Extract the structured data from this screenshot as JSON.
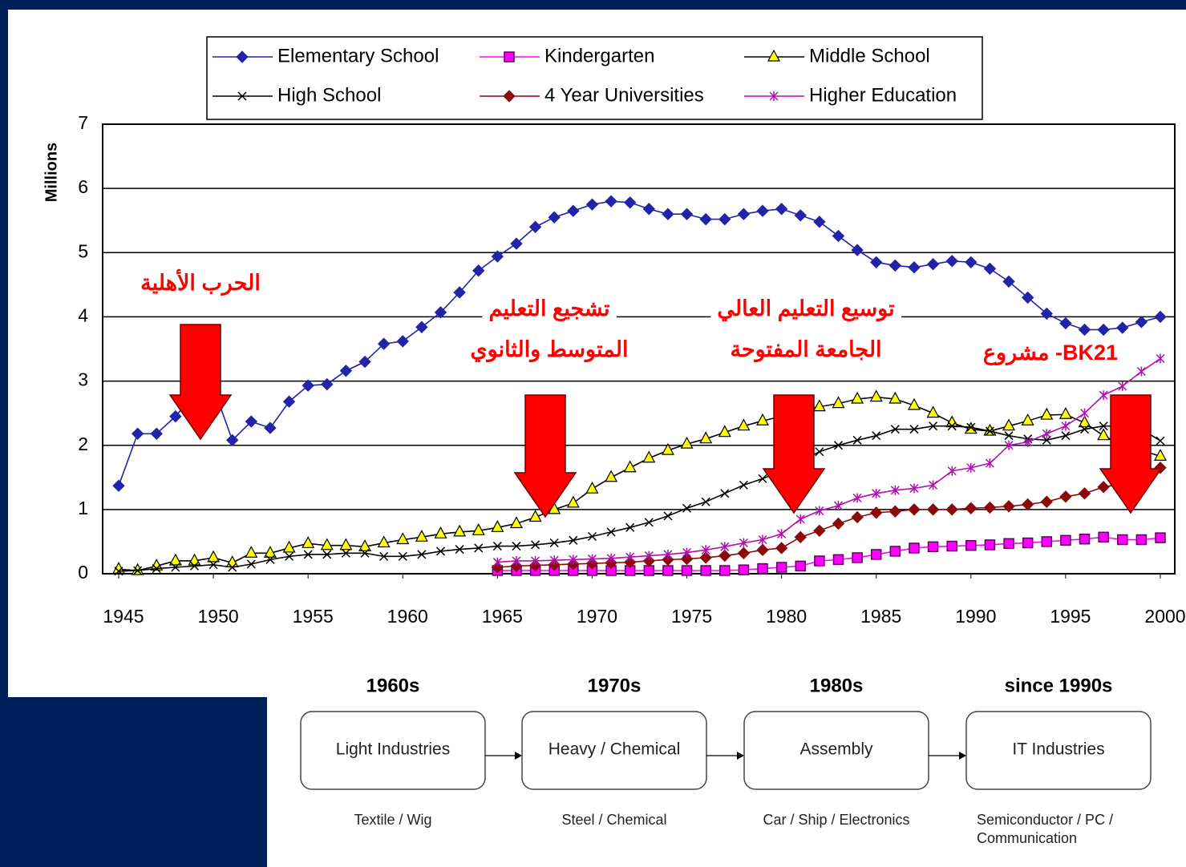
{
  "chart_data": {
    "type": "line",
    "y_label": "Millions",
    "x": [
      1945,
      1946,
      1947,
      1948,
      1949,
      1950,
      1951,
      1952,
      1953,
      1954,
      1955,
      1956,
      1957,
      1958,
      1959,
      1960,
      1961,
      1962,
      1963,
      1964,
      1965,
      1966,
      1967,
      1968,
      1969,
      1970,
      1971,
      1972,
      1973,
      1974,
      1975,
      1976,
      1977,
      1978,
      1979,
      1980,
      1981,
      1982,
      1983,
      1984,
      1985,
      1986,
      1987,
      1988,
      1989,
      1990,
      1991,
      1992,
      1993,
      1994,
      1995,
      1996,
      1997,
      1998,
      1999,
      2000
    ],
    "xlim": [
      1945,
      2000
    ],
    "xticks": [
      1945,
      1950,
      1955,
      1960,
      1965,
      1970,
      1975,
      1980,
      1985,
      1990,
      1995,
      2000
    ],
    "ylim": [
      0,
      7
    ],
    "yticks": [
      0,
      1,
      2,
      3,
      4,
      5,
      6,
      7
    ],
    "grid": true,
    "series": [
      {
        "name": "Elementary School",
        "color": "#2323a8",
        "marker": "diamond",
        "values": [
          1.37,
          2.18,
          2.18,
          2.45,
          2.8,
          2.9,
          2.08,
          2.37,
          2.27,
          2.68,
          2.93,
          2.95,
          3.16,
          3.3,
          3.58,
          3.62,
          3.84,
          4.07,
          4.38,
          4.72,
          4.94,
          5.14,
          5.4,
          5.55,
          5.65,
          5.75,
          5.8,
          5.78,
          5.68,
          5.6,
          5.6,
          5.52,
          5.52,
          5.6,
          5.65,
          5.68,
          5.58,
          5.48,
          5.26,
          5.04,
          4.85,
          4.8,
          4.77,
          4.82,
          4.87,
          4.85,
          4.75,
          4.55,
          4.3,
          4.05,
          3.9,
          3.8,
          3.8,
          3.83,
          3.92,
          4.0
        ]
      },
      {
        "name": "Kindergarten",
        "color": "#ff00ff",
        "marker": "square",
        "values": [
          null,
          null,
          null,
          null,
          null,
          null,
          null,
          null,
          null,
          null,
          null,
          null,
          null,
          null,
          null,
          null,
          null,
          null,
          null,
          null,
          0.05,
          0.05,
          0.05,
          0.05,
          0.05,
          0.05,
          0.05,
          0.05,
          0.05,
          0.05,
          0.05,
          0.05,
          0.05,
          0.06,
          0.08,
          0.1,
          0.12,
          0.2,
          0.22,
          0.25,
          0.3,
          0.35,
          0.4,
          0.42,
          0.43,
          0.44,
          0.45,
          0.47,
          0.48,
          0.5,
          0.52,
          0.54,
          0.57,
          0.53,
          0.53,
          0.56
        ]
      },
      {
        "name": "Middle School",
        "color": "#ffff00",
        "marker": "triangle",
        "values": [
          0.07,
          0.05,
          0.12,
          0.2,
          0.2,
          0.25,
          0.17,
          0.32,
          0.32,
          0.4,
          0.47,
          0.44,
          0.44,
          0.42,
          0.48,
          0.53,
          0.57,
          0.62,
          0.65,
          0.67,
          0.72,
          0.78,
          0.88,
          1.0,
          1.1,
          1.32,
          1.5,
          1.65,
          1.8,
          1.92,
          2.02,
          2.1,
          2.2,
          2.3,
          2.38,
          2.45,
          2.55,
          2.6,
          2.65,
          2.72,
          2.75,
          2.72,
          2.62,
          2.5,
          2.35,
          2.25,
          2.22,
          2.3,
          2.38,
          2.47,
          2.48,
          2.35,
          2.15,
          2.0,
          1.92,
          1.83
        ]
      },
      {
        "name": "High School",
        "color": "#000000",
        "marker": "x",
        "values": [
          0.04,
          0.05,
          0.08,
          0.1,
          0.12,
          0.14,
          0.1,
          0.15,
          0.22,
          0.27,
          0.3,
          0.3,
          0.32,
          0.32,
          0.27,
          0.27,
          0.3,
          0.35,
          0.38,
          0.4,
          0.43,
          0.43,
          0.45,
          0.48,
          0.52,
          0.58,
          0.65,
          0.72,
          0.8,
          0.9,
          1.02,
          1.12,
          1.25,
          1.38,
          1.48,
          1.6,
          1.75,
          1.9,
          2.0,
          2.08,
          2.15,
          2.25,
          2.25,
          2.3,
          2.3,
          2.28,
          2.22,
          2.15,
          2.1,
          2.08,
          2.15,
          2.25,
          2.3,
          2.3,
          2.25,
          2.07
        ]
      },
      {
        "name": "4 Year Universities",
        "color": "#8b0a0a",
        "marker": "diamond",
        "values": [
          null,
          null,
          null,
          null,
          null,
          null,
          null,
          null,
          null,
          null,
          null,
          null,
          null,
          null,
          null,
          null,
          null,
          null,
          null,
          null,
          0.1,
          0.12,
          0.13,
          0.14,
          0.15,
          0.16,
          0.17,
          0.18,
          0.2,
          0.22,
          0.23,
          0.25,
          0.28,
          0.32,
          0.37,
          0.4,
          0.57,
          0.67,
          0.78,
          0.88,
          0.95,
          0.97,
          1.0,
          1.0,
          1.0,
          1.02,
          1.03,
          1.05,
          1.08,
          1.12,
          1.2,
          1.25,
          1.35,
          1.4,
          1.52,
          1.65
        ]
      },
      {
        "name": "Higher Education",
        "color": "#b010b0",
        "marker": "star",
        "values": [
          null,
          null,
          null,
          null,
          null,
          null,
          null,
          null,
          null,
          null,
          null,
          null,
          null,
          null,
          null,
          null,
          null,
          null,
          null,
          null,
          0.18,
          0.2,
          0.2,
          0.21,
          0.22,
          0.23,
          0.24,
          0.26,
          0.28,
          0.3,
          0.33,
          0.37,
          0.42,
          0.48,
          0.53,
          0.62,
          0.85,
          0.98,
          1.06,
          1.18,
          1.25,
          1.3,
          1.33,
          1.38,
          1.6,
          1.65,
          1.72,
          2.0,
          2.05,
          2.18,
          2.3,
          2.5,
          2.78,
          2.92,
          3.15,
          3.35
        ]
      }
    ],
    "annotations": [
      {
        "lines": [
          "الحرب الأهلية"
        ]
      },
      {
        "lines": [
          "تشجيع التعليم",
          "المتوسط والثانوي"
        ]
      },
      {
        "lines": [
          "توسيع التعليم العالي",
          "الجامعة المفتوحة"
        ]
      },
      {
        "lines": [
          "مشروع -BK21"
        ]
      }
    ]
  },
  "timeline": [
    {
      "period": "1960s",
      "stage": "Light Industries",
      "detail": [
        "Textile / Wig"
      ]
    },
    {
      "period": "1970s",
      "stage": "Heavy / Chemical",
      "detail": [
        "Steel / Chemical"
      ]
    },
    {
      "period": "1980s",
      "stage": "Assembly",
      "detail": [
        "Car / Ship / Electronics"
      ]
    },
    {
      "period": "since 1990s",
      "stage": "IT Industries",
      "detail": [
        "Semiconductor / PC /",
        "Communication"
      ]
    }
  ]
}
